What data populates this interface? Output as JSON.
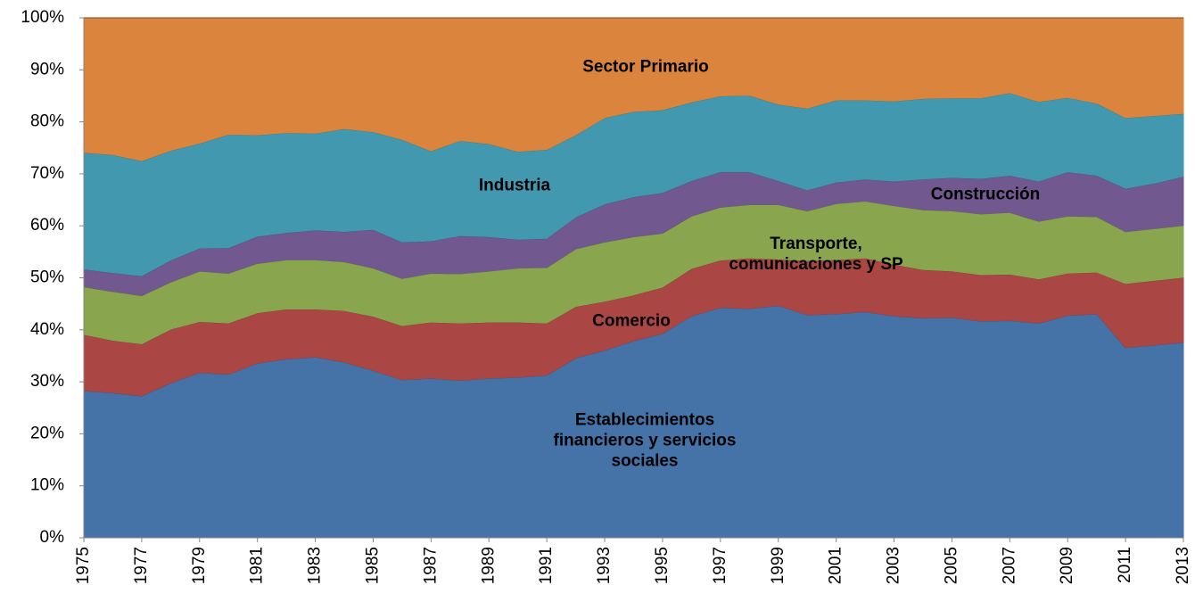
{
  "chart_data": {
    "type": "stacked_area",
    "x": [
      1975,
      1976,
      1977,
      1978,
      1979,
      1980,
      1981,
      1982,
      1983,
      1984,
      1985,
      1986,
      1987,
      1988,
      1989,
      1990,
      1991,
      1992,
      1993,
      1994,
      1995,
      1996,
      1997,
      1998,
      1999,
      2000,
      2001,
      2002,
      2003,
      2004,
      2005,
      2006,
      2007,
      2008,
      2009,
      2010,
      2011,
      2012,
      2013
    ],
    "xlim": [
      1975,
      2013
    ],
    "xticks": [
      1975,
      1977,
      1979,
      1981,
      1983,
      1985,
      1987,
      1989,
      1991,
      1993,
      1995,
      1997,
      1999,
      2001,
      2003,
      2005,
      2007,
      2009,
      2011,
      2013
    ],
    "ylim": [
      0,
      100
    ],
    "yticks": [
      {
        "value": 0,
        "label": "0%"
      },
      {
        "value": 10,
        "label": "10%"
      },
      {
        "value": 20,
        "label": "20%"
      },
      {
        "value": 30,
        "label": "30%"
      },
      {
        "value": 40,
        "label": "40%"
      },
      {
        "value": 50,
        "label": "50%"
      },
      {
        "value": 60,
        "label": "60%"
      },
      {
        "value": 70,
        "label": "70%"
      },
      {
        "value": 80,
        "label": "80%"
      },
      {
        "value": 90,
        "label": "90%"
      },
      {
        "value": 100,
        "label": "100%"
      }
    ],
    "series": [
      {
        "name": "Establecimientos financieros y servicios sociales",
        "color": "#4572a7",
        "values": [
          28.3,
          27.9,
          27.3,
          29.8,
          31.8,
          31.5,
          33.6,
          34.4,
          34.8,
          33.8,
          32.2,
          30.4,
          30.7,
          30.3,
          30.7,
          30.9,
          31.3,
          34.6,
          36.1,
          37.9,
          39.3,
          42.7,
          44.3,
          44.1,
          44.7,
          42.9,
          43.1,
          43.5,
          42.7,
          42.3,
          42.4,
          41.7,
          41.8,
          41.3,
          42.8,
          43.1,
          36.6,
          37.1,
          37.6
        ]
      },
      {
        "name": "Comercio",
        "color": "#aa4643",
        "values": [
          10.8,
          10.1,
          10.0,
          10.3,
          9.8,
          9.8,
          9.7,
          9.6,
          9.2,
          9.9,
          10.4,
          10.4,
          10.8,
          11.0,
          10.8,
          10.6,
          10.0,
          9.9,
          9.4,
          8.8,
          8.9,
          9.1,
          9.1,
          9.7,
          8.9,
          10.4,
          10.4,
          10.3,
          9.9,
          9.3,
          8.9,
          8.9,
          8.9,
          8.5,
          8.1,
          8.0,
          12.3,
          12.4,
          12.5
        ]
      },
      {
        "name": "Transporte, comunicaciones y SP",
        "color": "#89a54e",
        "values": [
          9.2,
          9.4,
          9.3,
          9.1,
          9.7,
          9.6,
          9.5,
          9.5,
          9.5,
          9.4,
          9.3,
          9.1,
          9.4,
          9.5,
          9.8,
          10.4,
          10.7,
          11.1,
          11.4,
          11.2,
          10.4,
          10.1,
          10.2,
          10.3,
          10.5,
          9.6,
          10.8,
          11.0,
          11.3,
          11.5,
          11.6,
          11.7,
          11.9,
          11.1,
          11.0,
          10.7,
          10.0,
          10.0,
          10.0
        ]
      },
      {
        "name": "Construcción",
        "color": "#71588f",
        "values": [
          3.4,
          3.6,
          3.8,
          4.2,
          4.4,
          4.9,
          5.2,
          5.2,
          5.7,
          5.8,
          7.4,
          7.0,
          6.2,
          7.3,
          6.6,
          5.5,
          5.6,
          6.1,
          7.3,
          7.7,
          7.8,
          6.8,
          6.8,
          6.3,
          4.6,
          4.0,
          4.1,
          4.2,
          4.7,
          5.9,
          6.4,
          6.8,
          7.1,
          7.7,
          8.5,
          7.9,
          8.3,
          8.7,
          9.4
        ]
      },
      {
        "name": "Industria",
        "color": "#4198af",
        "values": [
          22.4,
          22.7,
          22.1,
          21.1,
          20.2,
          21.8,
          19.5,
          19.2,
          18.6,
          19.8,
          18.8,
          19.7,
          17.3,
          18.3,
          17.9,
          16.9,
          17.1,
          15.8,
          16.6,
          16.4,
          15.9,
          15.1,
          14.6,
          14.7,
          14.7,
          15.7,
          15.8,
          15.2,
          15.4,
          15.5,
          15.3,
          15.5,
          15.9,
          15.3,
          14.3,
          13.9,
          13.6,
          13.0,
          12.1
        ]
      },
      {
        "name": "Sector Primario",
        "color": "#db843d",
        "values": [
          25.9,
          26.3,
          27.5,
          25.5,
          24.1,
          22.4,
          22.5,
          22.1,
          22.2,
          21.3,
          21.9,
          23.4,
          25.6,
          23.6,
          24.2,
          25.7,
          25.3,
          22.5,
          19.2,
          18.0,
          17.7,
          16.2,
          15.0,
          14.9,
          16.6,
          17.4,
          15.8,
          15.8,
          16.0,
          15.5,
          15.4,
          15.4,
          14.4,
          16.1,
          15.3,
          16.4,
          19.2,
          18.8,
          18.4
        ]
      }
    ]
  }
}
